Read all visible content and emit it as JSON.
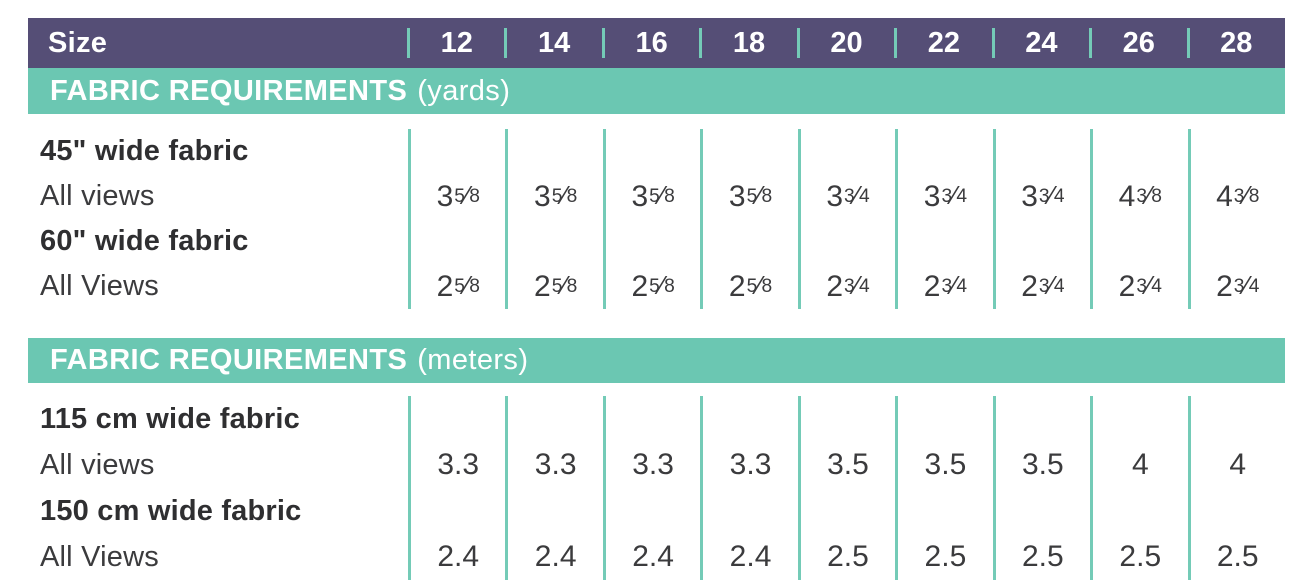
{
  "colors": {
    "header_purple": "#554E76",
    "band_teal": "#6BC7B2",
    "divider_teal": "#74CBB7",
    "text_dark": "#3B3B3D",
    "text_on_bands": "#FFFFFF"
  },
  "header": {
    "label": "Size",
    "sizes": [
      "12",
      "14",
      "16",
      "18",
      "20",
      "22",
      "24",
      "26",
      "28"
    ]
  },
  "sections": [
    {
      "band": {
        "title": "FABRIC REQUIREMENTS",
        "unit": "(yards)"
      },
      "rows": [
        {
          "label": "45\" wide fabric",
          "sublabel": "All views",
          "values": [
            "3 5/8",
            "3 5/8",
            "3 5/8",
            "3 5/8",
            "3 3/4",
            "3 3/4",
            "3 3/4",
            "4 3/8",
            "4 3/8"
          ]
        },
        {
          "label": "60\" wide fabric",
          "sublabel": "All Views",
          "values": [
            "2 5/8",
            "2 5/8",
            "2 5/8",
            "2 5/8",
            "2 3/4",
            "2 3/4",
            "2 3/4",
            "2 3/4",
            "2 3/4"
          ]
        }
      ]
    },
    {
      "band": {
        "title": "FABRIC REQUIREMENTS",
        "unit": "(meters)"
      },
      "rows": [
        {
          "label": "115 cm wide fabric",
          "sublabel": "All views",
          "values": [
            "3.3",
            "3.3",
            "3.3",
            "3.3",
            "3.5",
            "3.5",
            "3.5",
            "4",
            "4"
          ]
        },
        {
          "label": "150 cm wide fabric",
          "sublabel": "All Views",
          "values": [
            "2.4",
            "2.4",
            "2.4",
            "2.4",
            "2.5",
            "2.5",
            "2.5",
            "2.5",
            "2.5"
          ]
        }
      ]
    }
  ]
}
